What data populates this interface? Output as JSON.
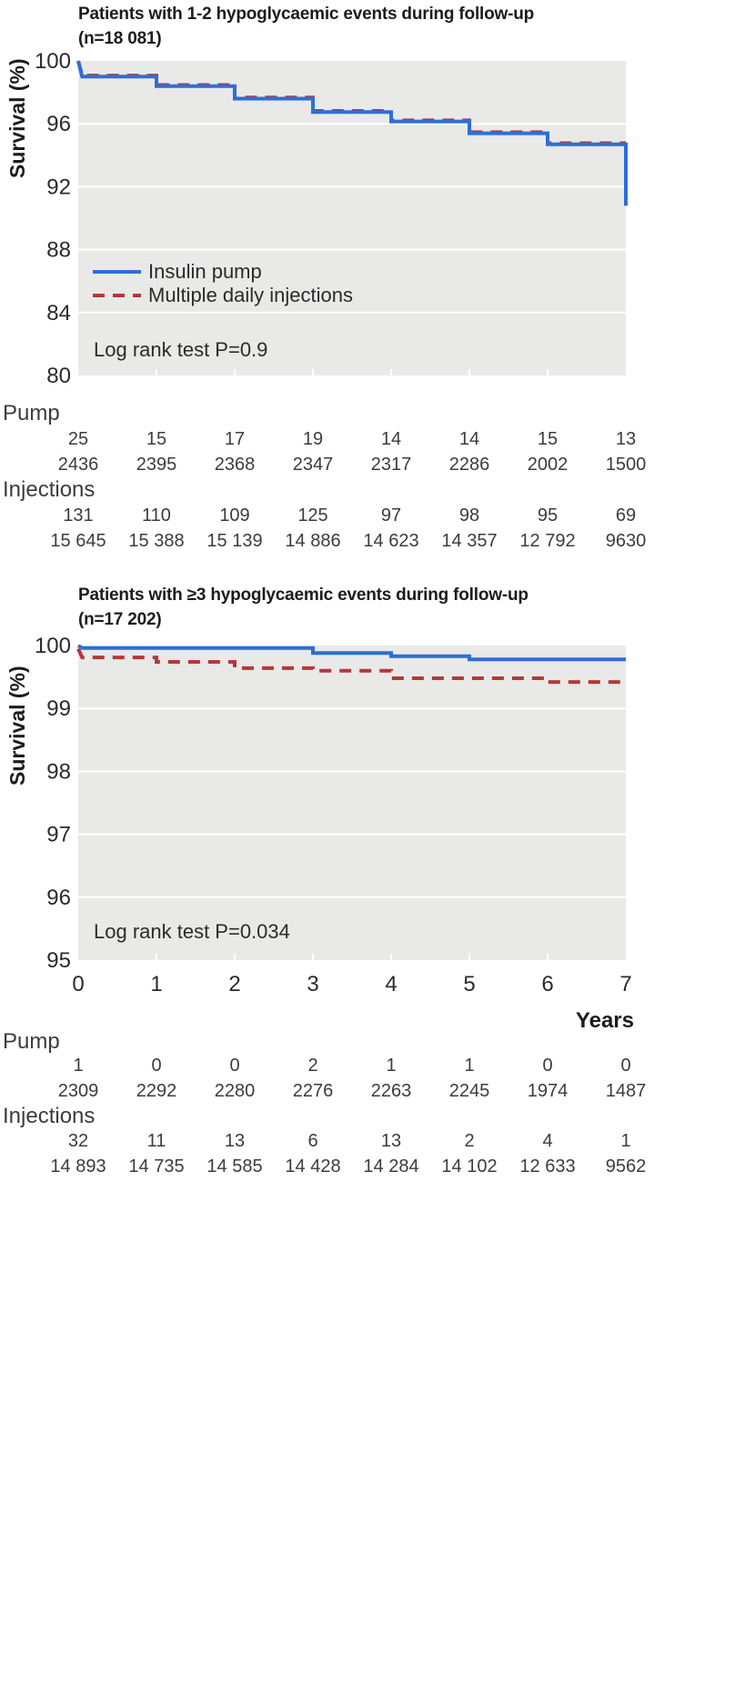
{
  "colors": {
    "pump_line": "#2d6ed8",
    "injections_line": "#b23939",
    "plot_background": "#e9e9e8",
    "gridline": "#ffffff",
    "title_text": "#1c1c1c",
    "tick_text": "#2b2b2b",
    "table_text": "#3c3c3c"
  },
  "chart_data": [
    {
      "type": "line",
      "title": "Patients with 1-2 hypoglycaemic events during follow-up (n=18 081)",
      "title_line1": "Patients with 1-2 hypoglycaemic events during follow-up",
      "title_line2": "(n=18 081)",
      "ylabel": "Survival (%)",
      "xlabel": "",
      "ylim": [
        80,
        100
      ],
      "xlim": [
        0,
        7
      ],
      "yticks": [
        "100",
        "96",
        "92",
        "88",
        "84",
        "80"
      ],
      "ytick_values": [
        100,
        96,
        92,
        88,
        84,
        80
      ],
      "xticks": [],
      "grid": true,
      "legend_position": "inside-left",
      "log_rank": "Log rank test P=0.9",
      "series": [
        {
          "name": "Multiple daily injections",
          "style": "dashed",
          "color": "#b23939",
          "points": [
            [
              0,
              100
            ],
            [
              0.05,
              99.07
            ],
            [
              1,
              99.07
            ],
            [
              1,
              98.47
            ],
            [
              2,
              98.47
            ],
            [
              2,
              97.67
            ],
            [
              3,
              97.67
            ],
            [
              3,
              96.82
            ],
            [
              4,
              96.82
            ],
            [
              4,
              96.22
            ],
            [
              5,
              96.22
            ],
            [
              5,
              95.47
            ],
            [
              6,
              95.47
            ],
            [
              6,
              94.77
            ],
            [
              7,
              94.77
            ]
          ]
        },
        {
          "name": "Insulin pump",
          "style": "solid",
          "color": "#2d6ed8",
          "points": [
            [
              0,
              100
            ],
            [
              0.05,
              99.0
            ],
            [
              1,
              99.0
            ],
            [
              1,
              98.4
            ],
            [
              2,
              98.4
            ],
            [
              2,
              97.6
            ],
            [
              3,
              97.6
            ],
            [
              3,
              96.75
            ],
            [
              4,
              96.75
            ],
            [
              4,
              96.15
            ],
            [
              5,
              96.15
            ],
            [
              5,
              95.4
            ],
            [
              6,
              95.4
            ],
            [
              6,
              94.7
            ],
            [
              7,
              94.7
            ],
            [
              7,
              90.8
            ]
          ]
        }
      ]
    },
    {
      "type": "line",
      "title": "Patients with ≥3 hypoglycaemic events during follow-up (n=17 202)",
      "title_line1": "Patients with ≥3 hypoglycaemic events during follow-up",
      "title_line2": "(n=17 202)",
      "ylabel": "Survival (%)",
      "xlabel": "Years",
      "ylim": [
        95,
        100
      ],
      "xlim": [
        0,
        7
      ],
      "yticks": [
        "100",
        "99",
        "98",
        "97",
        "96",
        "95"
      ],
      "ytick_values": [
        100,
        99,
        98,
        97,
        96,
        95
      ],
      "xticks": [
        "0",
        "1",
        "2",
        "3",
        "4",
        "5",
        "6",
        "7"
      ],
      "xtick_values": [
        0,
        1,
        2,
        3,
        4,
        5,
        6,
        7
      ],
      "grid": true,
      "legend_position": "none",
      "log_rank": "Log rank test P=0.034",
      "series": [
        {
          "name": "Multiple daily injections",
          "style": "dashed",
          "color": "#b23939",
          "points": [
            [
              0,
              99.95
            ],
            [
              0.05,
              99.81
            ],
            [
              1,
              99.81
            ],
            [
              1,
              99.74
            ],
            [
              2,
              99.74
            ],
            [
              2,
              99.64
            ],
            [
              3,
              99.64
            ],
            [
              3,
              99.6
            ],
            [
              4,
              99.6
            ],
            [
              4,
              99.48
            ],
            [
              6,
              99.48
            ],
            [
              6,
              99.42
            ],
            [
              7,
              99.42
            ]
          ]
        },
        {
          "name": "Insulin pump",
          "style": "solid",
          "color": "#2d6ed8",
          "points": [
            [
              0,
              100
            ],
            [
              0.05,
              99.96
            ],
            [
              3,
              99.96
            ],
            [
              3,
              99.88
            ],
            [
              4,
              99.88
            ],
            [
              4,
              99.83
            ],
            [
              5,
              99.83
            ],
            [
              5,
              99.78
            ],
            [
              7,
              99.78
            ]
          ]
        }
      ]
    }
  ],
  "risk_table1": {
    "pump_label": "Pump",
    "injections_label": "Injections",
    "pump_events": [
      "25",
      "15",
      "17",
      "19",
      "14",
      "14",
      "15",
      "13"
    ],
    "pump_at_risk": [
      "2436",
      "2395",
      "2368",
      "2347",
      "2317",
      "2286",
      "2002",
      "1500"
    ],
    "injections_events": [
      "131",
      "110",
      "109",
      "125",
      "97",
      "98",
      "95",
      "69"
    ],
    "injections_at_risk": [
      "15 645",
      "15 388",
      "15 139",
      "14 886",
      "14 623",
      "14 357",
      "12 792",
      "9630"
    ]
  },
  "risk_table2": {
    "pump_label": "Pump",
    "injections_label": "Injections",
    "pump_events": [
      "1",
      "0",
      "0",
      "2",
      "1",
      "1",
      "0",
      "0"
    ],
    "pump_at_risk": [
      "2309",
      "2292",
      "2280",
      "2276",
      "2263",
      "2245",
      "1974",
      "1487"
    ],
    "injections_events": [
      "32",
      "11",
      "13",
      "6",
      "13",
      "2",
      "4",
      "1"
    ],
    "injections_at_risk": [
      "14 893",
      "14 735",
      "14 585",
      "14 428",
      "14 284",
      "14 102",
      "12 633",
      "9562"
    ]
  }
}
